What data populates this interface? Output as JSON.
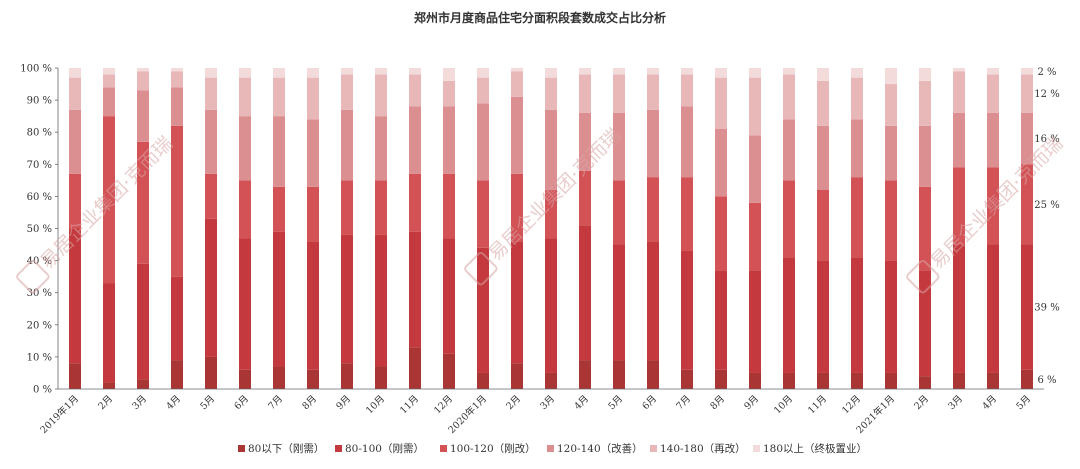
{
  "chart_data": {
    "type": "bar",
    "stacked": true,
    "title": "郑州市月度商品住宅分面积段套数成交占比分析",
    "ylim": [
      0,
      100
    ],
    "yticks": [
      "0 %",
      "10 %",
      "20 %",
      "30 %",
      "40 %",
      "50 %",
      "60 %",
      "70 %",
      "80 %",
      "90 %",
      "100 %"
    ],
    "grid": false,
    "legend_position": "bottom",
    "categories": [
      "2019年1月",
      "2月",
      "3月",
      "4月",
      "5月",
      "6月",
      "7月",
      "8月",
      "9月",
      "10月",
      "11月",
      "12月",
      "2020年1月",
      "2月",
      "3月",
      "4月",
      "5月",
      "6月",
      "7月",
      "8月",
      "9月",
      "10月",
      "11月",
      "12月",
      "2021年1月",
      "2月",
      "3月",
      "4月",
      "5月"
    ],
    "series": [
      {
        "name": "80以下（刚需）",
        "color": "#a93535",
        "values": [
          8,
          2,
          3,
          9,
          10,
          6,
          7,
          6,
          8,
          7,
          13,
          11,
          5,
          8,
          5,
          9,
          9,
          9,
          6,
          6,
          5,
          5,
          5,
          5,
          5,
          4,
          5,
          5,
          6
        ]
      },
      {
        "name": "80-100（刚需）",
        "color": "#c4393d",
        "values": [
          42,
          31,
          36,
          26,
          43,
          41,
          42,
          40,
          40,
          41,
          36,
          36,
          39,
          38,
          42,
          42,
          36,
          37,
          37,
          31,
          32,
          36,
          35,
          36,
          35,
          33,
          40,
          40,
          39
        ]
      },
      {
        "name": "100-120（刚改）",
        "color": "#d35256",
        "values": [
          17,
          52,
          38,
          47,
          14,
          18,
          14,
          17,
          17,
          17,
          18,
          20,
          21,
          21,
          15,
          17,
          20,
          20,
          23,
          23,
          21,
          24,
          22,
          25,
          25,
          26,
          24,
          24,
          25
        ]
      },
      {
        "name": "120-140（改善）",
        "color": "#dc8f91",
        "values": [
          20,
          9,
          16,
          12,
          20,
          20,
          22,
          21,
          22,
          20,
          21,
          21,
          24,
          24,
          25,
          18,
          21,
          21,
          22,
          21,
          21,
          19,
          20,
          18,
          17,
          19,
          17,
          17,
          16
        ]
      },
      {
        "name": "140-180（再改）",
        "color": "#e8b7b8",
        "values": [
          10,
          4,
          6,
          5,
          10,
          12,
          12,
          13,
          11,
          13,
          10,
          8,
          8,
          8,
          10,
          12,
          12,
          11,
          10,
          16,
          18,
          14,
          14,
          13,
          13,
          14,
          13,
          12,
          12
        ]
      },
      {
        "name": "180以上（终极置业）",
        "color": "#f4dbdb",
        "values": [
          3,
          2,
          1,
          1,
          3,
          3,
          3,
          3,
          2,
          2,
          2,
          4,
          3,
          1,
          3,
          2,
          2,
          2,
          2,
          3,
          3,
          2,
          4,
          3,
          5,
          4,
          1,
          2,
          2
        ]
      }
    ],
    "annotations": [
      "2 %",
      "12 %",
      "16 %",
      "25 %",
      "39 %",
      "6 %"
    ]
  },
  "watermark": {
    "text": "易居企业集团·克而瑞",
    "logo": "易居"
  }
}
